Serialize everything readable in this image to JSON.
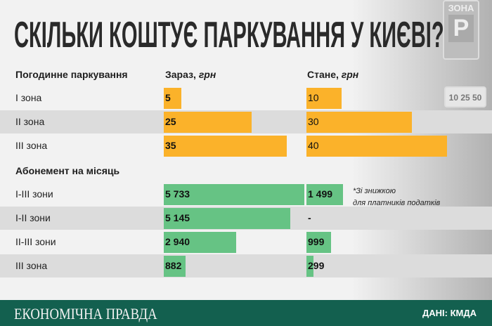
{
  "title": "СКІЛЬКИ КОШТУЄ ПАРКУВАННЯ У КИЄВІ?",
  "photo": {
    "sign_top": "ЗОНА",
    "sign_p": "P",
    "sign_rates": "10 25 50"
  },
  "colors": {
    "hourly": "#fbb22a",
    "monthly": "#66c384",
    "footer": "#13604f",
    "stripe": "#dcdcdc"
  },
  "chart_data": [
    {
      "type": "bar",
      "title": "Погодинне паркування",
      "categories": [
        "І зона",
        "ІІ зона",
        "ІІІ зона"
      ],
      "series": [
        {
          "name": "Зараз",
          "unit": "грн",
          "values": [
            5,
            25,
            35
          ],
          "labels": [
            "5",
            "25",
            "35"
          ]
        },
        {
          "name": "Стане",
          "unit": "грн",
          "values": [
            10,
            30,
            40
          ],
          "labels": [
            "10",
            "30",
            "40"
          ]
        }
      ]
    },
    {
      "type": "bar",
      "title": "Абонемент на місяць",
      "categories": [
        "І-ІІІ зони",
        "І-ІІ зони",
        "ІІ-ІІІ зони",
        "ІІІ зона"
      ],
      "series": [
        {
          "name": "Зараз",
          "values": [
            5733,
            5145,
            2940,
            882
          ],
          "labels": [
            "5 733",
            "5 145",
            "2 940",
            "882"
          ]
        },
        {
          "name": "Стане",
          "values": [
            1499,
            null,
            999,
            299
          ],
          "labels": [
            "1 499",
            "-",
            "999",
            "299"
          ]
        }
      ]
    }
  ],
  "note": {
    "line1": "*Зі знижкою",
    "line2": "для платників податків"
  },
  "footer": {
    "brand": "ЕКОНОМІЧНА ПРАВДА",
    "source": "ДАНІ: КМДА"
  }
}
